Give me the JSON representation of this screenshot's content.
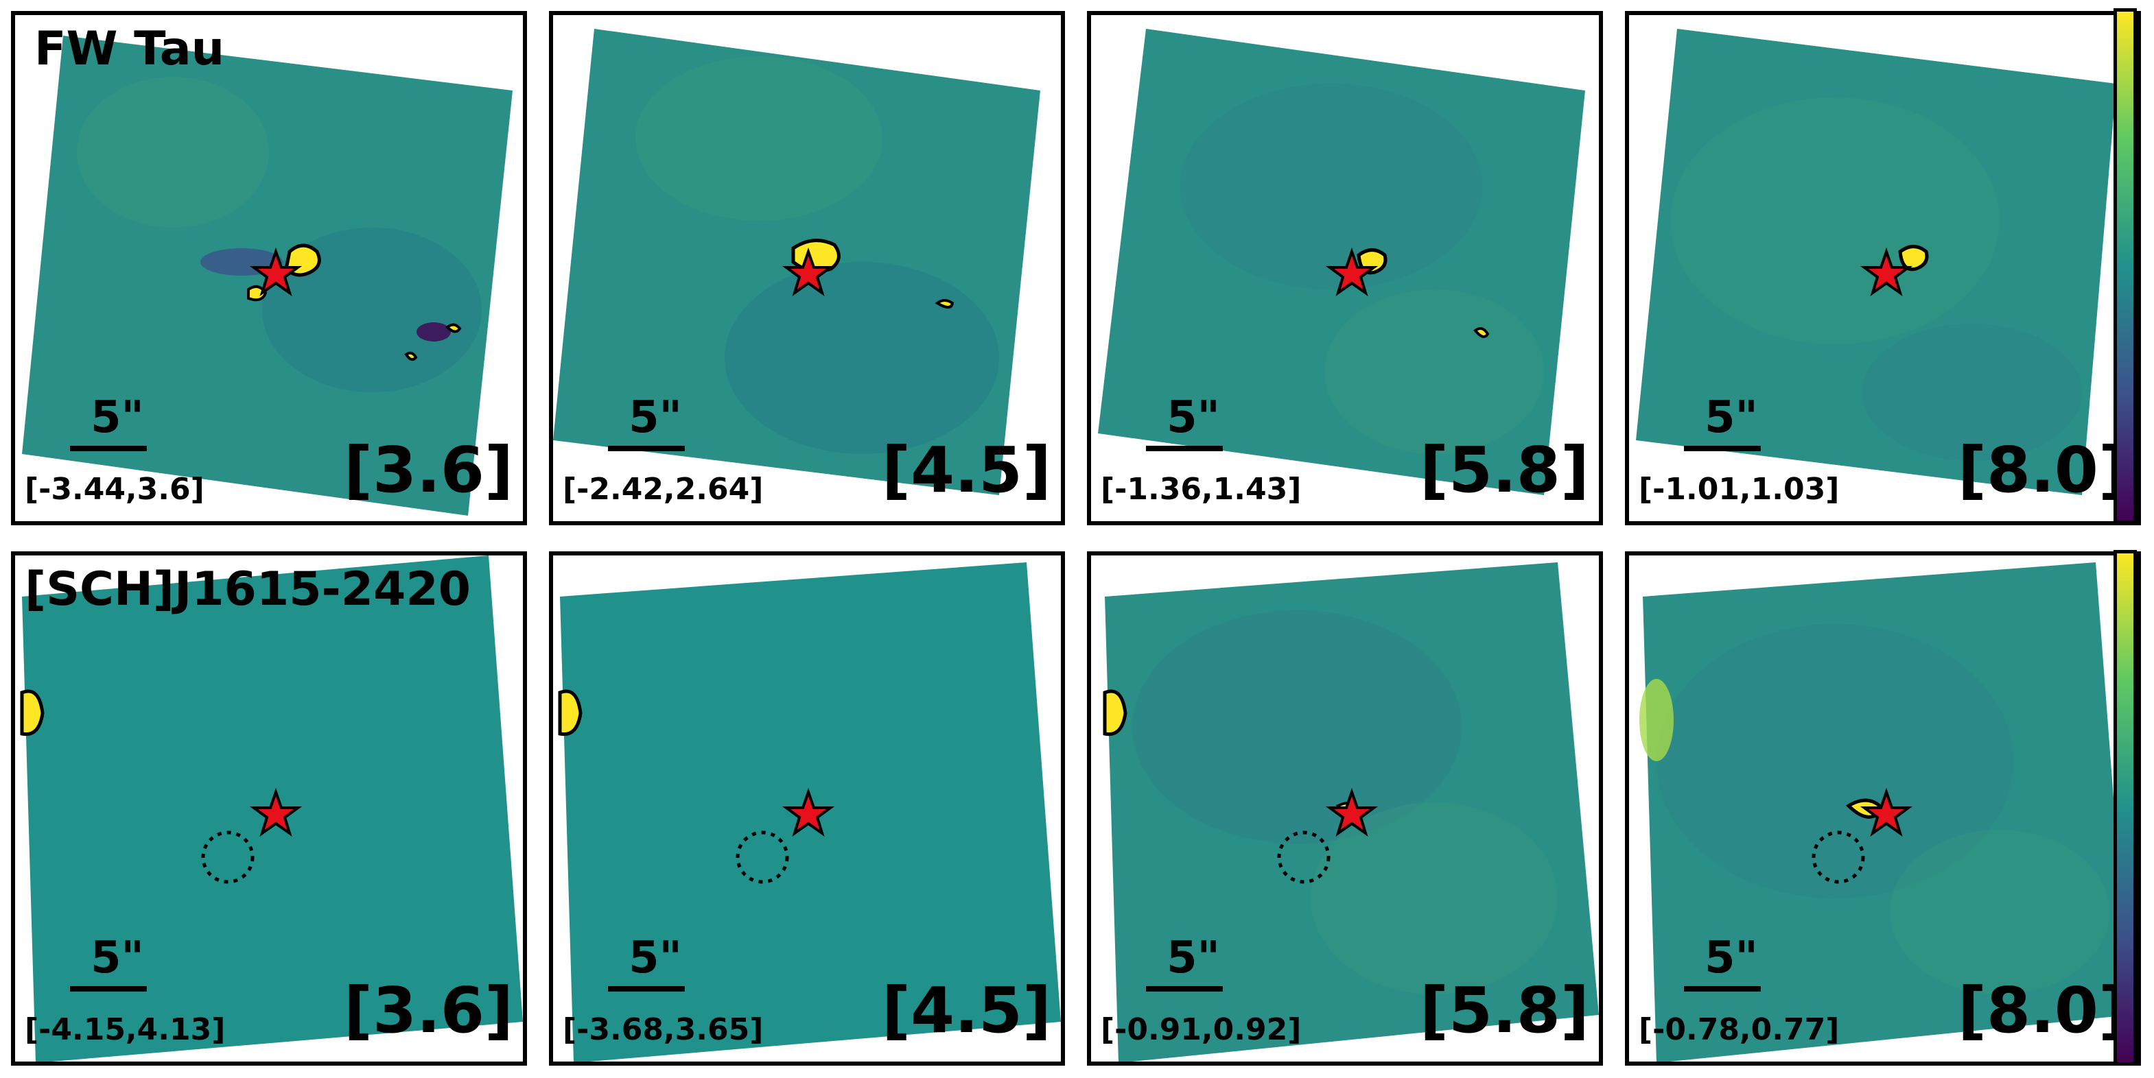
{
  "rows": [
    {
      "target": "FW Tau",
      "panels": [
        {
          "band": "[3.6]",
          "range": "[-3.44,3.6]",
          "scale": "5\""
        },
        {
          "band": "[4.5]",
          "range": "[-2.42,2.64]",
          "scale": "5\""
        },
        {
          "band": "[5.8]",
          "range": "[-1.36,1.43]",
          "scale": "5\""
        },
        {
          "band": "[8.0]",
          "range": "[-1.01,1.03]",
          "scale": "5\""
        }
      ]
    },
    {
      "target": "[SCH]J1615-2420",
      "panels": [
        {
          "band": "[3.6]",
          "range": "[-4.15,4.13]",
          "scale": "5\""
        },
        {
          "band": "[4.5]",
          "range": "[-3.68,3.65]",
          "scale": "5\""
        },
        {
          "band": "[5.8]",
          "range": "[-0.91,0.92]",
          "scale": "5\""
        },
        {
          "band": "[8.0]",
          "range": "[-0.78,0.77]",
          "scale": "5\""
        }
      ]
    }
  ],
  "colors": {
    "map_background": "#21918c",
    "high": "#fde725",
    "low": "#440154",
    "star": "#e8101a",
    "colormap": "viridis"
  }
}
